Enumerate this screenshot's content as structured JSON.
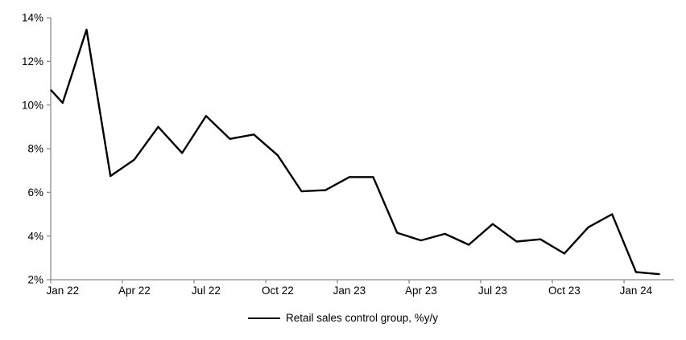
{
  "chart_data": {
    "type": "line",
    "title": "",
    "xlabel": "",
    "ylabel": "",
    "categories": [
      "Jan 22",
      "Feb 22",
      "Mar 22",
      "Apr 22",
      "May 22",
      "Jun 22",
      "Jul 22",
      "Aug 22",
      "Sep 22",
      "Oct 22",
      "Nov 22",
      "Dec 22",
      "Jan 23",
      "Feb 23",
      "Mar 23",
      "Apr 23",
      "May 23",
      "Jun 23",
      "Jul 23",
      "Aug 23",
      "Sep 23",
      "Oct 23",
      "Nov 23",
      "Dec 23",
      "Jan 24",
      "Feb 24"
    ],
    "series": [
      {
        "name": "Retail sales control group, %y/y",
        "color": "#000000",
        "lead_in_value_at_axis": 10.7,
        "values": [
          10.1,
          13.45,
          6.75,
          7.5,
          9.0,
          7.8,
          9.5,
          8.45,
          8.65,
          7.7,
          6.05,
          6.1,
          6.7,
          6.7,
          4.15,
          3.8,
          4.1,
          3.6,
          4.55,
          3.75,
          3.85,
          3.2,
          4.4,
          5.0,
          2.35,
          2.25
        ]
      }
    ],
    "x_tick_labels": [
      "Jan 22",
      "Apr 22",
      "Jul 22",
      "Oct 22",
      "Jan 23",
      "Apr 23",
      "Jul 23",
      "Oct 23",
      "Jan 24"
    ],
    "x_tick_interval": 3,
    "y_ticks": [
      2,
      4,
      6,
      8,
      10,
      12,
      14
    ],
    "y_tick_labels": [
      "2%",
      "4%",
      "6%",
      "8%",
      "10%",
      "12%",
      "14%"
    ],
    "ylim": [
      2,
      14
    ],
    "grid": false,
    "legend_position": "bottom-center",
    "axis_color": "#8c8c8c",
    "text_color": "#000000",
    "background_color": "#ffffff"
  },
  "legend": {
    "label": "Retail sales control group, %y/y"
  }
}
